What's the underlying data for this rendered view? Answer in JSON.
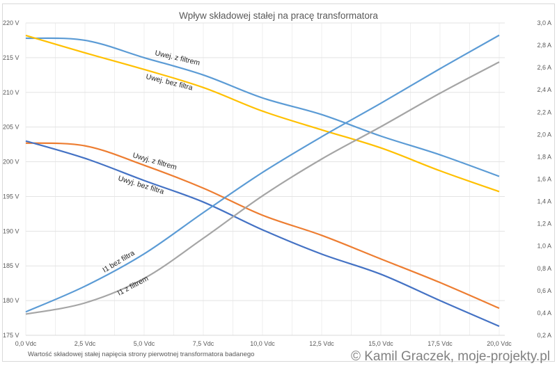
{
  "chart_data": {
    "type": "line",
    "title": "Wpływ składowej stałej na pracę transformatora",
    "xlabel": "Wartość składowej stałej napięcia strony pierwotnej transformatora badanego",
    "ylabel": "",
    "y2label": "",
    "x": [
      0,
      2.5,
      5,
      7.5,
      10,
      12.5,
      15,
      17.5,
      20
    ],
    "x_tick_labels": [
      "0,0 Vdc",
      "2,5 Vdc",
      "5,0 Vdc",
      "7,5 Vdc",
      "10,0 Vdc",
      "12,5 Vdc",
      "15,0 Vdc",
      "17,5 Vdc",
      "20,0 Vdc"
    ],
    "xlim": [
      0,
      20
    ],
    "ylim": [
      175,
      220
    ],
    "y_tick_labels": [
      "175 V",
      "180 V",
      "185 V",
      "190 V",
      "195 V",
      "200 V",
      "205 V",
      "210 V",
      "215 V",
      "220 V"
    ],
    "y2lim": [
      0.2,
      3.0
    ],
    "y2_tick_labels": [
      "0,2 A",
      "0,4 A",
      "0,6 A",
      "0,8 A",
      "1,0 A",
      "1,2 A",
      "1,4 A",
      "1,6 A",
      "1,8 A",
      "2,0 A",
      "2,2 A",
      "2,4 A",
      "2,6 A",
      "2,8 A",
      "3,0 A"
    ],
    "grid": true,
    "legend": "none",
    "series": [
      {
        "name": "Uwej. z filtrem",
        "axis": "left",
        "color": "#5B9BD5",
        "values": [
          217.8,
          217.5,
          215.0,
          212.5,
          209.2,
          206.8,
          203.7,
          201.0,
          197.9
        ]
      },
      {
        "name": "Uwej. bez filtra",
        "axis": "left",
        "color": "#FFC000",
        "values": [
          218.2,
          215.7,
          213.3,
          210.7,
          207.3,
          204.6,
          202.0,
          198.7,
          195.7
        ]
      },
      {
        "name": "Uwyj. z filtrem",
        "axis": "left",
        "color": "#ED7D31",
        "values": [
          202.7,
          202.3,
          199.5,
          196.2,
          192.3,
          189.4,
          186.0,
          182.6,
          178.9
        ]
      },
      {
        "name": "Uwyj. bez filtra",
        "axis": "left",
        "color": "#4472C4",
        "values": [
          203.0,
          200.5,
          197.3,
          194.2,
          190.2,
          186.7,
          183.8,
          180.0,
          176.3
        ]
      },
      {
        "name": "I1 bez filtra",
        "axis": "right",
        "color": "#5B9BD5",
        "values": [
          0.41,
          0.64,
          0.93,
          1.3,
          1.66,
          1.98,
          2.28,
          2.59,
          2.89
        ]
      },
      {
        "name": "I1 z filtrem",
        "axis": "right",
        "color": "#A5A5A5",
        "values": [
          0.39,
          0.49,
          0.71,
          1.07,
          1.45,
          1.78,
          2.07,
          2.37,
          2.65
        ]
      }
    ]
  },
  "watermark": "© Kamil Graczek, moje-projekty.pl"
}
